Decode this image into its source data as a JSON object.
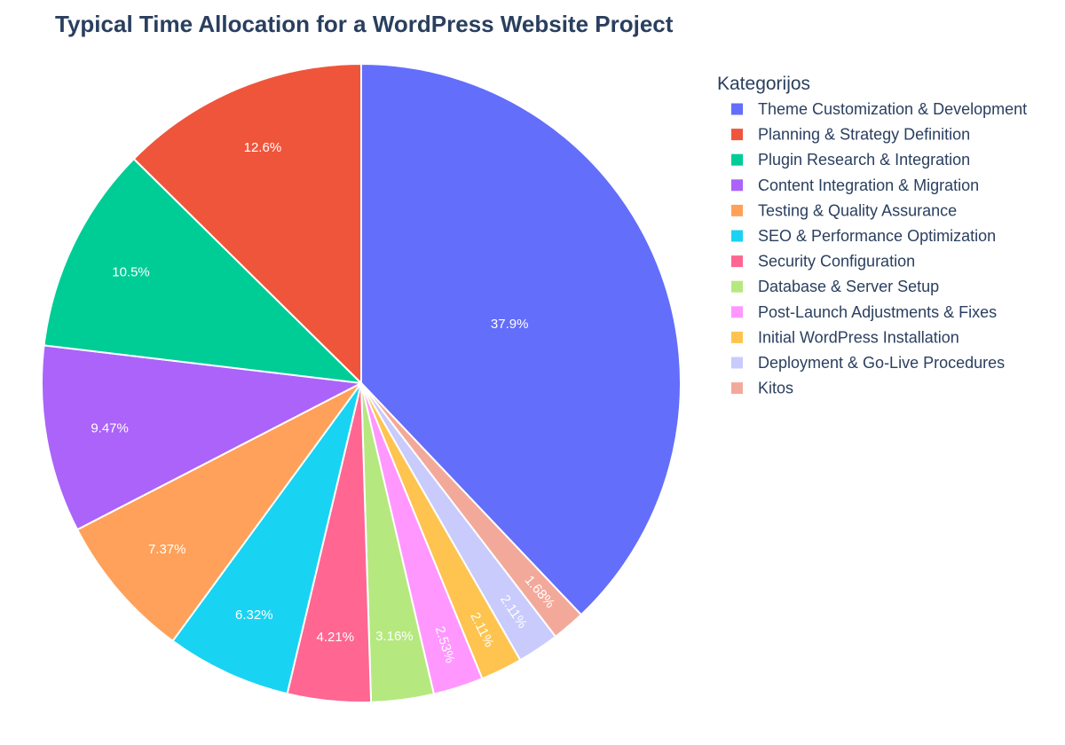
{
  "chart_data": {
    "type": "pie",
    "title": "Typical Time Allocation for a WordPress Website Project",
    "legend_title": "Kategorijos",
    "legend_position": "right",
    "direction": "clockwise",
    "start_angle": "top",
    "slices": [
      {
        "label": "Theme Customization & Development",
        "percent": 37.9,
        "percent_text": "37.9%",
        "color": "#636efa"
      },
      {
        "label": "Kitos",
        "percent": 1.68,
        "percent_text": "1.68%",
        "color": "#f3a99a"
      },
      {
        "label": "Deployment & Go-Live Procedures",
        "percent": 2.11,
        "percent_text": "2.11%",
        "color": "#c8cbfb"
      },
      {
        "label": "Initial WordPress Installation",
        "percent": 2.11,
        "percent_text": "2.11%",
        "color": "#fec44f"
      },
      {
        "label": "Post-Launch Adjustments & Fixes",
        "percent": 2.53,
        "percent_text": "2.53%",
        "color": "#ff97ff"
      },
      {
        "label": "Database & Server Setup",
        "percent": 3.16,
        "percent_text": "3.16%",
        "color": "#b6e880"
      },
      {
        "label": "Security Configuration",
        "percent": 4.21,
        "percent_text": "4.21%",
        "color": "#ff6692"
      },
      {
        "label": "SEO & Performance Optimization",
        "percent": 6.32,
        "percent_text": "6.32%",
        "color": "#19d3f3"
      },
      {
        "label": "Testing & Quality Assurance",
        "percent": 7.37,
        "percent_text": "7.37%",
        "color": "#ffa15a"
      },
      {
        "label": "Content Integration & Migration",
        "percent": 9.47,
        "percent_text": "9.47%",
        "color": "#ab63fa"
      },
      {
        "label": "Plugin Research & Integration",
        "percent": 10.5,
        "percent_text": "10.5%",
        "color": "#00cc96"
      },
      {
        "label": "Planning & Strategy Definition",
        "percent": 12.6,
        "percent_text": "12.6%",
        "color": "#ef553b"
      }
    ],
    "legend_order": [
      "Theme Customization & Development",
      "Planning & Strategy Definition",
      "Plugin Research & Integration",
      "Content Integration & Migration",
      "Testing & Quality Assurance",
      "SEO & Performance Optimization",
      "Security Configuration",
      "Database & Server Setup",
      "Post-Launch Adjustments & Fixes",
      "Initial WordPress Installation",
      "Deployment & Go-Live Procedures",
      "Kitos"
    ]
  }
}
